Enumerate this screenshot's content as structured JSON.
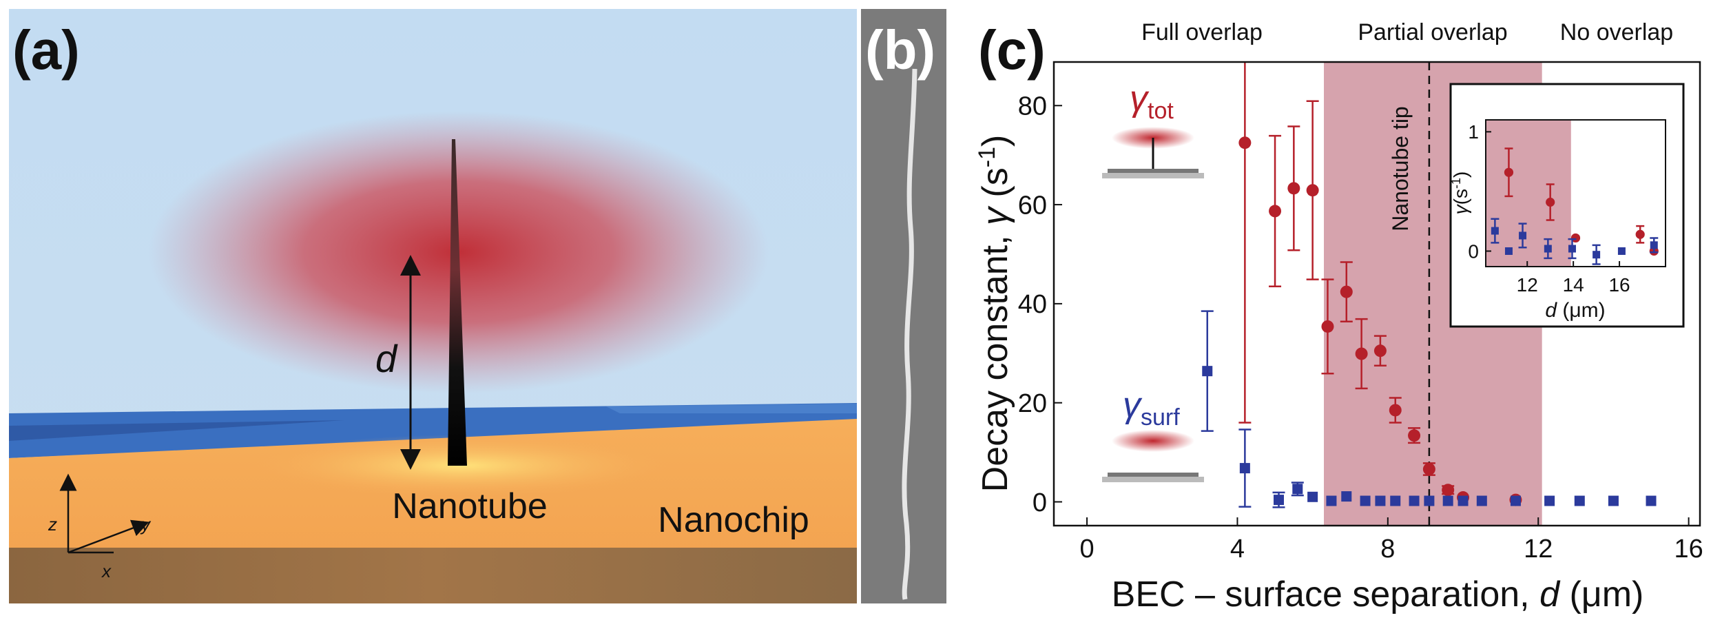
{
  "panels": {
    "a": {
      "label": "(a)",
      "d": "d",
      "nanotube": "Nanotube",
      "nanochip": "Nanochip",
      "z": "z",
      "y": "y",
      "x": "x"
    },
    "b": {
      "label": "(b)"
    }
  },
  "chart_data": {
    "type": "scatter",
    "panel_label": "(c)",
    "xlabel": [
      "BEC – surface separation, ",
      "d",
      " (μm)"
    ],
    "ylabel": [
      "Decay constant, ",
      "γ",
      " (s",
      "-1",
      ")"
    ],
    "xlim": [
      -0.88,
      16.3
    ],
    "ylim": [
      -4.8,
      88.8
    ],
    "xticks": [
      0,
      4,
      8,
      12,
      16
    ],
    "yticks": [
      0,
      20,
      40,
      60,
      80
    ],
    "regions": [
      "Full overlap",
      "Partial overlap",
      "No overlap"
    ],
    "shaded_region": [
      6.3,
      12.1
    ],
    "shade_color": "#d6a3ad",
    "annotation": {
      "label": "Nanotube tip",
      "x": 9.1
    },
    "series": [
      {
        "symbol": "γ",
        "subscript": "tot",
        "color": "#b5202a",
        "marker": "circle",
        "x": [
          4.2,
          5.0,
          5.5,
          6.0,
          6.4,
          6.9,
          7.3,
          7.8,
          8.2,
          8.7,
          9.1,
          9.6,
          10.0,
          11.4
        ],
        "values": [
          72.5,
          58.7,
          63.3,
          62.9,
          35.4,
          42.4,
          29.9,
          30.5,
          18.5,
          13.4,
          6.6,
          2.4,
          0.9,
          0.4
        ],
        "errors": [
          56.5,
          15.2,
          12.5,
          18,
          9.5,
          6,
          7,
          3,
          2.5,
          1.5,
          1.2,
          0.8,
          null,
          null
        ]
      },
      {
        "symbol": "γ",
        "subscript": "surf",
        "color": "#2b3a9c",
        "marker": "square",
        "x": [
          3.2,
          4.2,
          5.1,
          5.6,
          6.0,
          6.5,
          6.9,
          7.4,
          7.8,
          8.2,
          8.7,
          9.1,
          9.6,
          10.0,
          10.5,
          11.4,
          12.3,
          13.1,
          14.0,
          15.0
        ],
        "values": [
          26.4,
          6.8,
          0.4,
          2.6,
          1.0,
          0.2,
          1.1,
          0.2,
          0.2,
          0.2,
          0.2,
          0.2,
          0.2,
          0.2,
          0.2,
          0.2,
          0.2,
          0.2,
          0.2,
          0.2
        ],
        "errors": [
          12.1,
          7.8,
          1.5,
          1.3,
          null,
          null,
          null,
          null,
          null,
          null,
          null,
          null,
          null,
          null,
          null,
          null,
          null,
          null,
          null,
          null
        ]
      }
    ],
    "inset": {
      "xlim": [
        10.2,
        18.0
      ],
      "ylim": [
        -0.13,
        1.1
      ],
      "xticks": [
        12,
        14,
        16
      ],
      "yticks": [
        0,
        1
      ],
      "shaded_region": [
        10.2,
        13.9
      ],
      "xlabel": [
        "d",
        " (μm)"
      ],
      "ylabel": [
        "γ",
        "(s",
        "-1",
        ")"
      ],
      "series": [
        {
          "color": "#b5202a",
          "marker": "circle",
          "x": [
            11.2,
            13.0,
            14.1,
            16.9,
            17.5
          ],
          "values": [
            0.66,
            0.41,
            0.11,
            0.14,
            0.0
          ],
          "errors": [
            0.2,
            0.15,
            null,
            0.07,
            null
          ]
        },
        {
          "color": "#2b3a9c",
          "marker": "square",
          "x": [
            10.6,
            11.2,
            11.8,
            12.9,
            13.95,
            15.0,
            16.1,
            17.5
          ],
          "values": [
            0.17,
            0,
            0.13,
            0.02,
            0.02,
            -0.03,
            0,
            0.05
          ],
          "errors": [
            0.1,
            null,
            0.1,
            0.08,
            0.08,
            0.08,
            null,
            0.06
          ]
        }
      ]
    }
  }
}
